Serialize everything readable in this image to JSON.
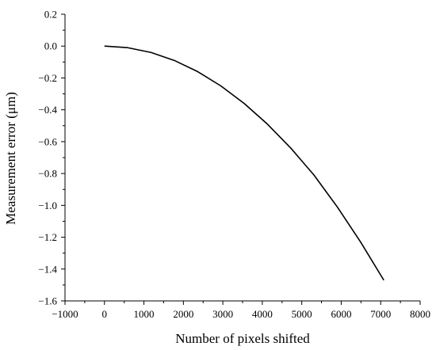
{
  "chart_data": {
    "type": "line",
    "title": "",
    "xlabel": "Number of pixels shifted",
    "ylabel": "Measurement error (μm)",
    "xlim": [
      -1000,
      8000
    ],
    "ylim": [
      -1.6,
      0.2
    ],
    "xticks": [
      -1000,
      0,
      1000,
      2000,
      3000,
      4000,
      5000,
      6000,
      7000,
      8000
    ],
    "xtick_labels": [
      "−1000",
      "0",
      "1000",
      "2000",
      "3000",
      "4000",
      "5000",
      "6000",
      "7000",
      "8000"
    ],
    "yticks": [
      0.2,
      0.0,
      -0.2,
      -0.4,
      -0.6,
      -0.8,
      -1.0,
      -1.2,
      -1.4,
      -1.6
    ],
    "ytick_labels": [
      "0.2",
      "0.0",
      "−0.2",
      "−0.4",
      "−0.6",
      "−0.8",
      "−1.0",
      "−1.2",
      "−1.4",
      "−1.6"
    ],
    "grid": false,
    "line_color": "#000000",
    "series": [
      {
        "x": [
          0,
          590,
          1180,
          1770,
          2360,
          2950,
          3540,
          4130,
          4720,
          5310,
          5900,
          6490,
          7080
        ],
        "y": [
          0.0,
          -0.01,
          -0.04,
          -0.09,
          -0.16,
          -0.25,
          -0.36,
          -0.49,
          -0.64,
          -0.81,
          -1.01,
          -1.23,
          -1.47
        ]
      }
    ]
  }
}
